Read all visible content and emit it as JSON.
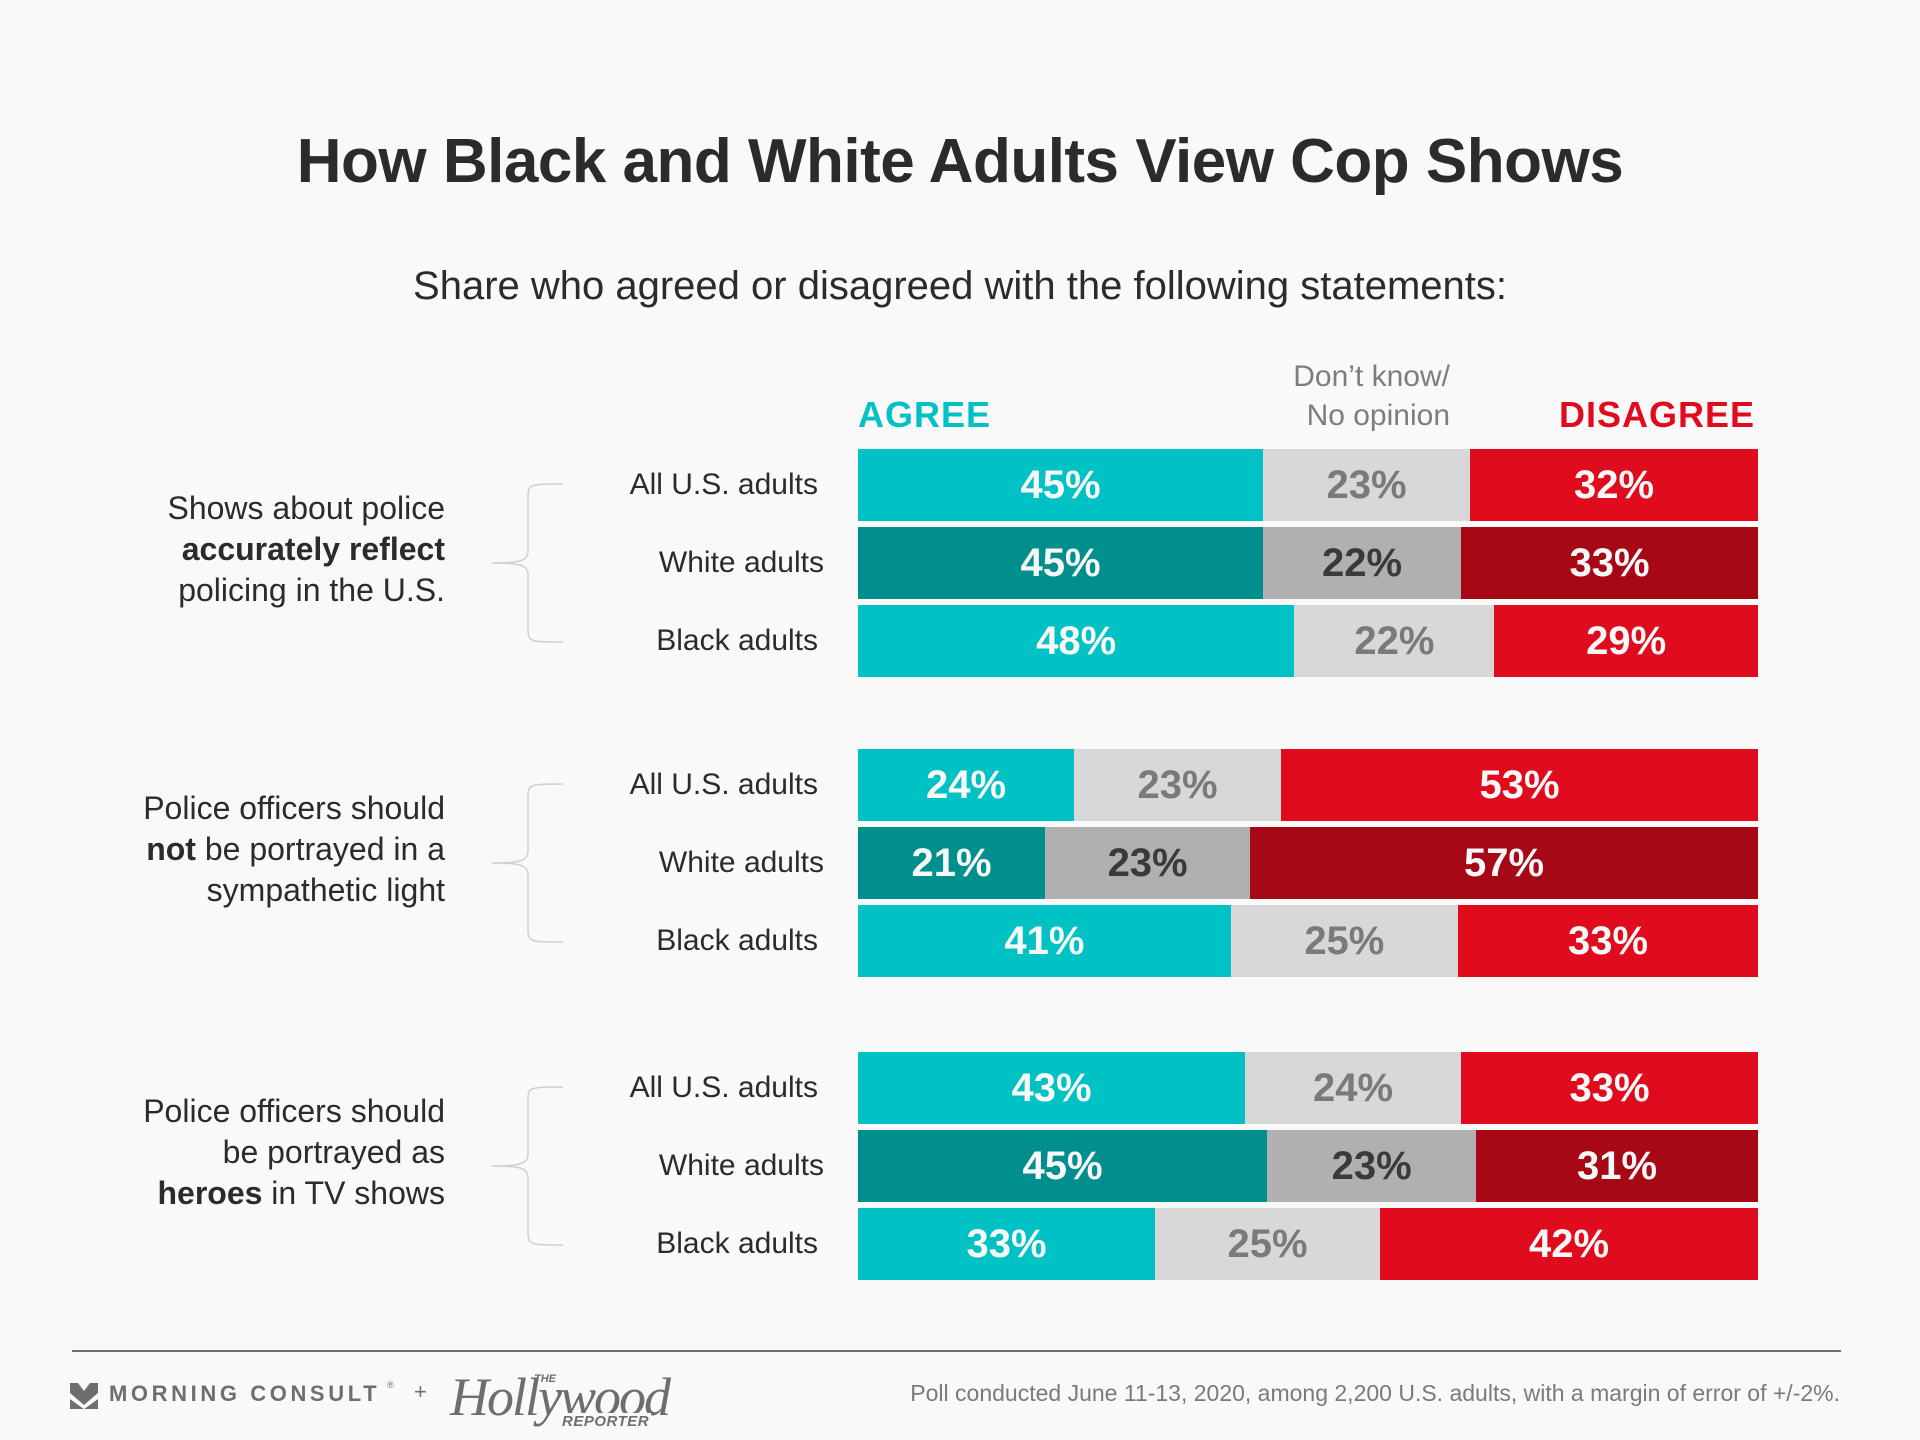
{
  "chart_data": {
    "type": "bar",
    "orientation": "horizontal",
    "stacked": true,
    "normalized": true,
    "title": "How Black and White Adults View Cop Shows",
    "subtitle": "Share who agreed or disagreed with the following statements:",
    "legend": [
      {
        "key": "agree",
        "label": "AGREE",
        "color": "#00c1c3"
      },
      {
        "key": "dont_know",
        "label_lines": [
          "Don’t know/",
          "No opinion"
        ],
        "color": "#d8d8d8"
      },
      {
        "key": "disagree",
        "label": "DISAGREE",
        "color": "#e00b1c"
      }
    ],
    "legend_placement": "top",
    "series_names": [
      "Agree",
      "Don't know/No opinion",
      "Disagree"
    ],
    "categories": [
      "All U.S. adults",
      "White adults",
      "Black adults"
    ],
    "groups": [
      {
        "statement_parts": [
          {
            "text": "Shows about police",
            "bold": false,
            "br": true
          },
          {
            "text": "accurately reflect",
            "bold": true,
            "br": true
          },
          {
            "text": "policing in the U.S.",
            "bold": false,
            "br": false
          }
        ],
        "statement": "Shows about police accurately reflect policing in the U.S.",
        "rows": [
          {
            "label": "All U.S. adults",
            "agree": 45,
            "dont_know": 23,
            "disagree": 32
          },
          {
            "label": "White adults",
            "agree": 45,
            "dont_know": 22,
            "disagree": 33
          },
          {
            "label": "Black adults",
            "agree": 48,
            "dont_know": 22,
            "disagree": 29
          }
        ]
      },
      {
        "statement_parts": [
          {
            "text": "Police officers should",
            "bold": false,
            "br": true
          },
          {
            "text": "not",
            "bold": true,
            "br": false
          },
          {
            "text": " be portrayed in a",
            "bold": false,
            "br": true
          },
          {
            "text": "sympathetic light",
            "bold": false,
            "br": false
          }
        ],
        "statement": "Police officers should not be portrayed in a sympathetic light",
        "rows": [
          {
            "label": "All U.S. adults",
            "agree": 24,
            "dont_know": 23,
            "disagree": 53
          },
          {
            "label": "White adults",
            "agree": 21,
            "dont_know": 23,
            "disagree": 57
          },
          {
            "label": "Black adults",
            "agree": 41,
            "dont_know": 25,
            "disagree": 33
          }
        ]
      },
      {
        "statement_parts": [
          {
            "text": "Police officers should",
            "bold": false,
            "br": true
          },
          {
            "text": "be portrayed as",
            "bold": false,
            "br": true
          },
          {
            "text": "heroes",
            "bold": true,
            "br": false
          },
          {
            "text": " in TV shows",
            "bold": false,
            "br": false
          }
        ],
        "statement": "Police officers should be portrayed as heroes in TV shows",
        "rows": [
          {
            "label": "All U.S. adults",
            "agree": 43,
            "dont_know": 24,
            "disagree": 33
          },
          {
            "label": "White adults",
            "agree": 45,
            "dont_know": 23,
            "disagree": 31
          },
          {
            "label": "Black adults",
            "agree": 33,
            "dont_know": 25,
            "disagree": 42
          }
        ]
      }
    ],
    "value_suffix": "%",
    "xlim": [
      0,
      100
    ],
    "grid": false
  },
  "colors": {
    "agree": "#00c1c3",
    "agree_white_adults": "#008f8d",
    "dont_know": "#d8d8d8",
    "dont_know_white_adults": "#b0b0b0",
    "disagree": "#e00b1c",
    "disagree_white_adults": "#a60815",
    "dont_know_text": "#7a7a7a",
    "dont_know_text_white_adults": "#3a3a3a",
    "bar_text": "#f8f8f8"
  },
  "footer": {
    "brand_1": "MORNING CONSULT",
    "registered_mark": "®",
    "plus": "+",
    "brand_2_the": "THE",
    "brand_2_name": "Hollywood",
    "brand_2_reporter": "REPORTER",
    "note": "Poll conducted June 11-13, 2020, among 2,200 U.S. adults, with a margin of error of +/-2%."
  },
  "icons": {
    "brand_1_logo": "morning-consult-chevron-icon"
  }
}
